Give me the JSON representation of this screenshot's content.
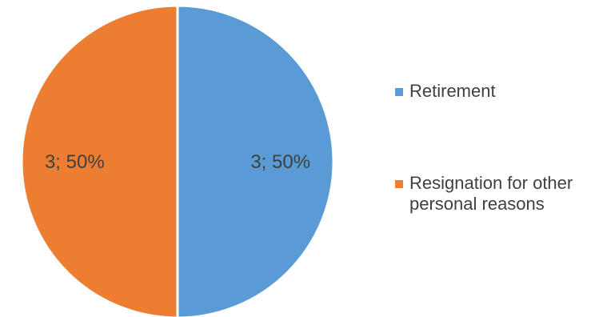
{
  "chart_data": {
    "type": "pie",
    "title": "",
    "slices": [
      {
        "label": "Retirement",
        "value": 3,
        "percent": "50%",
        "data_label": "3; 50%",
        "color": "#5B9BD5"
      },
      {
        "label": "Resignation for other personal reasons",
        "value": 3,
        "percent": "50%",
        "data_label": "3; 50%",
        "color": "#ED7D31"
      }
    ],
    "legend_position": "right",
    "start_angle_deg": 0,
    "direction": "clockwise"
  }
}
